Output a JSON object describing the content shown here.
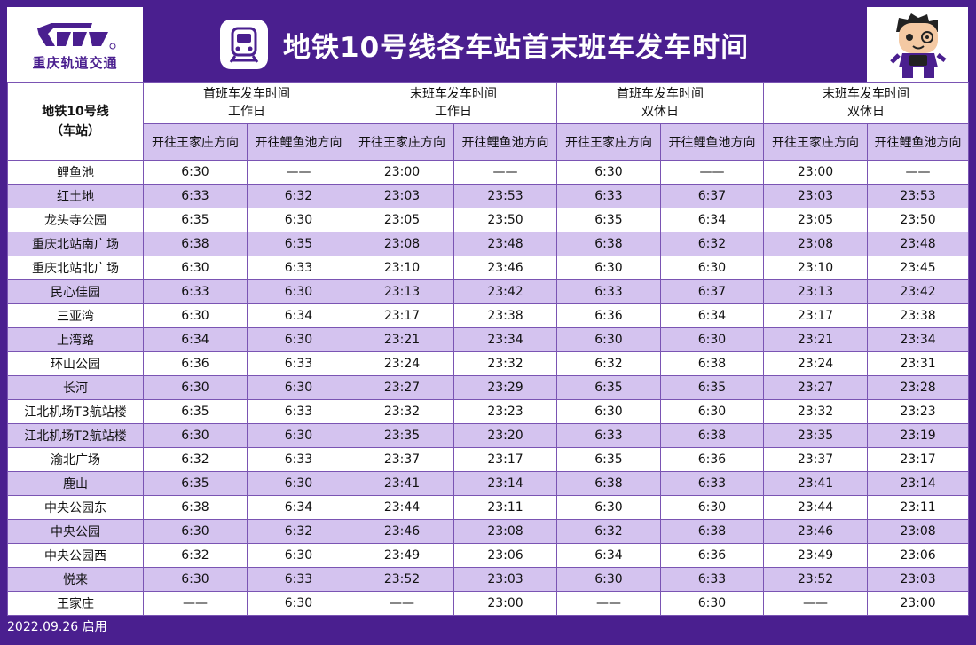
{
  "logo": {
    "name": "重庆轨道交通",
    "registered": "®"
  },
  "title": "地铁10号线各车站首末班车发车时间",
  "corner": {
    "line1": "地铁10号线",
    "line2": "（车站）"
  },
  "groups": [
    {
      "line1": "首班车发车时间",
      "line2": "工作日"
    },
    {
      "line1": "末班车发车时间",
      "line2": "工作日"
    },
    {
      "line1": "首班车发车时间",
      "line2": "双休日"
    },
    {
      "line1": "末班车发车时间",
      "line2": "双休日"
    }
  ],
  "directions": [
    "开往王家庄方向",
    "开往鲤鱼池方向",
    "开往王家庄方向",
    "开往鲤鱼池方向",
    "开往王家庄方向",
    "开往鲤鱼池方向",
    "开往王家庄方向",
    "开往鲤鱼池方向"
  ],
  "rows": [
    {
      "station": "鲤鱼池",
      "times": [
        "6:30",
        "——",
        "23:00",
        "——",
        "6:30",
        "——",
        "23:00",
        "——"
      ]
    },
    {
      "station": "红土地",
      "times": [
        "6:33",
        "6:32",
        "23:03",
        "23:53",
        "6:33",
        "6:37",
        "23:03",
        "23:53"
      ]
    },
    {
      "station": "龙头寺公园",
      "times": [
        "6:35",
        "6:30",
        "23:05",
        "23:50",
        "6:35",
        "6:34",
        "23:05",
        "23:50"
      ]
    },
    {
      "station": "重庆北站南广场",
      "times": [
        "6:38",
        "6:35",
        "23:08",
        "23:48",
        "6:38",
        "6:32",
        "23:08",
        "23:48"
      ]
    },
    {
      "station": "重庆北站北广场",
      "times": [
        "6:30",
        "6:33",
        "23:10",
        "23:46",
        "6:30",
        "6:30",
        "23:10",
        "23:45"
      ]
    },
    {
      "station": "民心佳园",
      "times": [
        "6:33",
        "6:30",
        "23:13",
        "23:42",
        "6:33",
        "6:37",
        "23:13",
        "23:42"
      ]
    },
    {
      "station": "三亚湾",
      "times": [
        "6:30",
        "6:34",
        "23:17",
        "23:38",
        "6:36",
        "6:34",
        "23:17",
        "23:38"
      ]
    },
    {
      "station": "上湾路",
      "times": [
        "6:34",
        "6:30",
        "23:21",
        "23:34",
        "6:30",
        "6:30",
        "23:21",
        "23:34"
      ]
    },
    {
      "station": "环山公园",
      "times": [
        "6:36",
        "6:33",
        "23:24",
        "23:32",
        "6:32",
        "6:38",
        "23:24",
        "23:31"
      ]
    },
    {
      "station": "长河",
      "times": [
        "6:30",
        "6:30",
        "23:27",
        "23:29",
        "6:35",
        "6:35",
        "23:27",
        "23:28"
      ]
    },
    {
      "station": "江北机场T3航站楼",
      "times": [
        "6:35",
        "6:33",
        "23:32",
        "23:23",
        "6:30",
        "6:30",
        "23:32",
        "23:23"
      ]
    },
    {
      "station": "江北机场T2航站楼",
      "times": [
        "6:30",
        "6:30",
        "23:35",
        "23:20",
        "6:33",
        "6:38",
        "23:35",
        "23:19"
      ]
    },
    {
      "station": "渝北广场",
      "times": [
        "6:32",
        "6:33",
        "23:37",
        "23:17",
        "6:35",
        "6:36",
        "23:37",
        "23:17"
      ]
    },
    {
      "station": "鹿山",
      "times": [
        "6:35",
        "6:30",
        "23:41",
        "23:14",
        "6:38",
        "6:33",
        "23:41",
        "23:14"
      ]
    },
    {
      "station": "中央公园东",
      "times": [
        "6:38",
        "6:34",
        "23:44",
        "23:11",
        "6:30",
        "6:30",
        "23:44",
        "23:11"
      ]
    },
    {
      "station": "中央公园",
      "times": [
        "6:30",
        "6:32",
        "23:46",
        "23:08",
        "6:32",
        "6:38",
        "23:46",
        "23:08"
      ]
    },
    {
      "station": "中央公园西",
      "times": [
        "6:32",
        "6:30",
        "23:49",
        "23:06",
        "6:34",
        "6:36",
        "23:49",
        "23:06"
      ]
    },
    {
      "station": "悦来",
      "times": [
        "6:30",
        "6:33",
        "23:52",
        "23:03",
        "6:30",
        "6:33",
        "23:52",
        "23:03"
      ]
    },
    {
      "station": "王家庄",
      "times": [
        "——",
        "6:30",
        "——",
        "23:00",
        "——",
        "6:30",
        "——",
        "23:00"
      ]
    }
  ],
  "footer": "2022.09.26 启用",
  "colors": {
    "brand_purple": "#4a1f8f",
    "row_stripe": "#d4c3ef",
    "grid_line": "#7a54b3"
  },
  "icons": {
    "logo": "crt-logo",
    "title": "metro-train-icon",
    "mascot": "mascot-figure"
  }
}
